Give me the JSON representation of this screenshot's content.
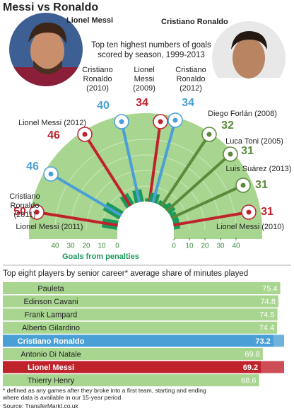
{
  "title": "Messi vs Ronaldo",
  "players": [
    {
      "name": "Lionel Messi"
    },
    {
      "name": "Cristiano Ronaldo"
    }
  ],
  "chart_data": [
    {
      "type": "radial_bar",
      "title": "Top ten highest numbers of goals scored by season, 1999-2013",
      "categories": [
        "Lionel Messi (2011)",
        "Cristiano Ronaldo (2011)",
        "Lionel Messi (2012)",
        "Cristiano Ronaldo (2010)",
        "Lionel Messi (2009)",
        "Cristiano Ronaldo (2012)",
        "Diego Forlán (2008)",
        "Luca Toni (2005)",
        "Luis Suárez (2013)",
        "Lionel Messi (2010)"
      ],
      "values": [
        50,
        46,
        46,
        40,
        34,
        34,
        32,
        31,
        31,
        31
      ],
      "penalties": [
        10,
        12,
        8,
        8,
        2,
        6,
        3,
        5,
        4,
        4
      ],
      "colors": [
        "#c0222c",
        "#4a9fd6",
        "#c0222c",
        "#4a9fd6",
        "#c0222c",
        "#4a9fd6",
        "#5a8a3a",
        "#5a8a3a",
        "#5a8a3a",
        "#c0222c"
      ],
      "penalty_axis_label": "Goals from penalties",
      "penalty_lim": [
        0,
        40
      ],
      "penalty_ticks_left": [
        40,
        30,
        20,
        10,
        0
      ],
      "penalty_ticks_right": [
        0,
        10,
        20,
        30,
        40
      ]
    },
    {
      "type": "bar",
      "orientation": "horizontal",
      "title": "Top eight players by senior career* average share of minutes played",
      "categories": [
        "Pauleta",
        "Edinson Cavani",
        "Frank Lampard",
        "Alberto Gilardino",
        "Cristiano Ronaldo",
        "Antonio Di Natale",
        "Lionel Messi",
        "Thierry Henry"
      ],
      "values": [
        75.4,
        74.8,
        74.5,
        74.4,
        73.2,
        69.8,
        69.2,
        68.6
      ],
      "colors": [
        "#a8d590",
        "#a8d590",
        "#a8d590",
        "#a8d590",
        "#4a9fd6",
        "#a8d590",
        "#c0222c",
        "#a8d590"
      ],
      "highlight": [
        false,
        false,
        false,
        false,
        true,
        false,
        true,
        false
      ]
    }
  ],
  "footnote": "* defined as any games after they broke into a first team, starting and ending where data is available in our 15-year period",
  "source": "Source: TransferMarkt.co.uk"
}
